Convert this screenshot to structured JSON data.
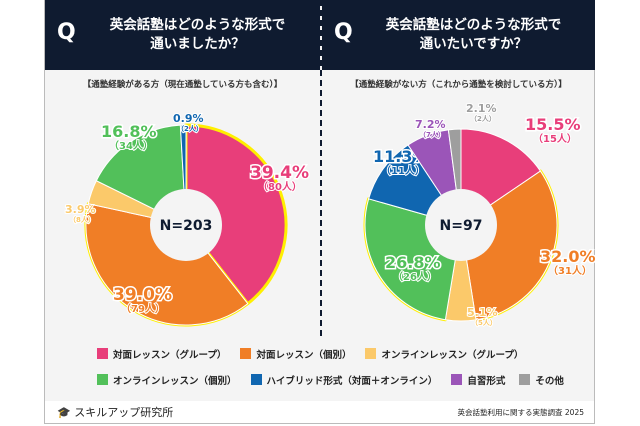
{
  "chart_data": [
    {
      "type": "pie",
      "title": "英会話塾はどのような形式で\n通いましたか？",
      "subtitle": "【通塾経験がある方（現在通塾している方も含む）】",
      "center_label": "N=203",
      "slices": [
        {
          "category": "対面レッスン（グループ）",
          "percent": 39.4,
          "count": "（80人）",
          "highlight": true
        },
        {
          "category": "対面レッスン（個別）",
          "percent": 39.0,
          "count": "（79人）",
          "highlight": true
        },
        {
          "category": "オンラインレッスン（グループ）",
          "percent": 3.9,
          "count": "（8人）",
          "highlight": false
        },
        {
          "category": "オンラインレッスン（個別）",
          "percent": 16.8,
          "count": "（34人）",
          "highlight": false
        },
        {
          "category": "ハイブリッド形式（対面＋オンライン）",
          "percent": 0.9,
          "count": "（2人）",
          "highlight": false
        }
      ]
    },
    {
      "type": "pie",
      "title": "英会話塾はどのような形式で\n通いたいですか？",
      "subtitle": "【通塾経験がない方（これから通塾を検討している方）】",
      "center_label": "N=97",
      "slices": [
        {
          "category": "対面レッスン（グループ）",
          "percent": 15.5,
          "count": "（15人）",
          "highlight": false
        },
        {
          "category": "対面レッスン（個別）",
          "percent": 32.0,
          "count": "（31人）",
          "highlight": true
        },
        {
          "category": "オンラインレッスン（グループ）",
          "percent": 5.1,
          "count": "（5人）",
          "highlight": false
        },
        {
          "category": "オンラインレッスン（個別）",
          "percent": 26.8,
          "count": "（26人）",
          "highlight": true
        },
        {
          "category": "ハイブリッド形式（対面＋オンライン）",
          "percent": 11.3,
          "count": "（11人）",
          "highlight": false
        },
        {
          "category": "自習形式",
          "percent": 7.2,
          "count": "（7人）",
          "highlight": false
        },
        {
          "category": "その他",
          "percent": 2.1,
          "count": "（2人）",
          "highlight": false
        }
      ]
    }
  ],
  "q_mark": "Q",
  "legend": [
    {
      "label": "対面レッスン（グループ）",
      "color": "#e83e7a"
    },
    {
      "label": "対面レッスン（個別）",
      "color": "#f07e26"
    },
    {
      "label": "オンラインレッスン（グループ）",
      "color": "#fbc96a"
    },
    {
      "label": "オンラインレッスン（個別）",
      "color": "#52c05a"
    },
    {
      "label": "ハイブリッド形式（対面＋オンライン）",
      "color": "#1066b0"
    },
    {
      "label": "自習形式",
      "color": "#9b55b8"
    },
    {
      "label": "その他",
      "color": "#9e9e9e"
    }
  ],
  "highlight_color": "#ffef00",
  "footer": {
    "logo": "スキルアップ研究所",
    "survey": "英会話塾利用に関する実態調査 2025"
  }
}
